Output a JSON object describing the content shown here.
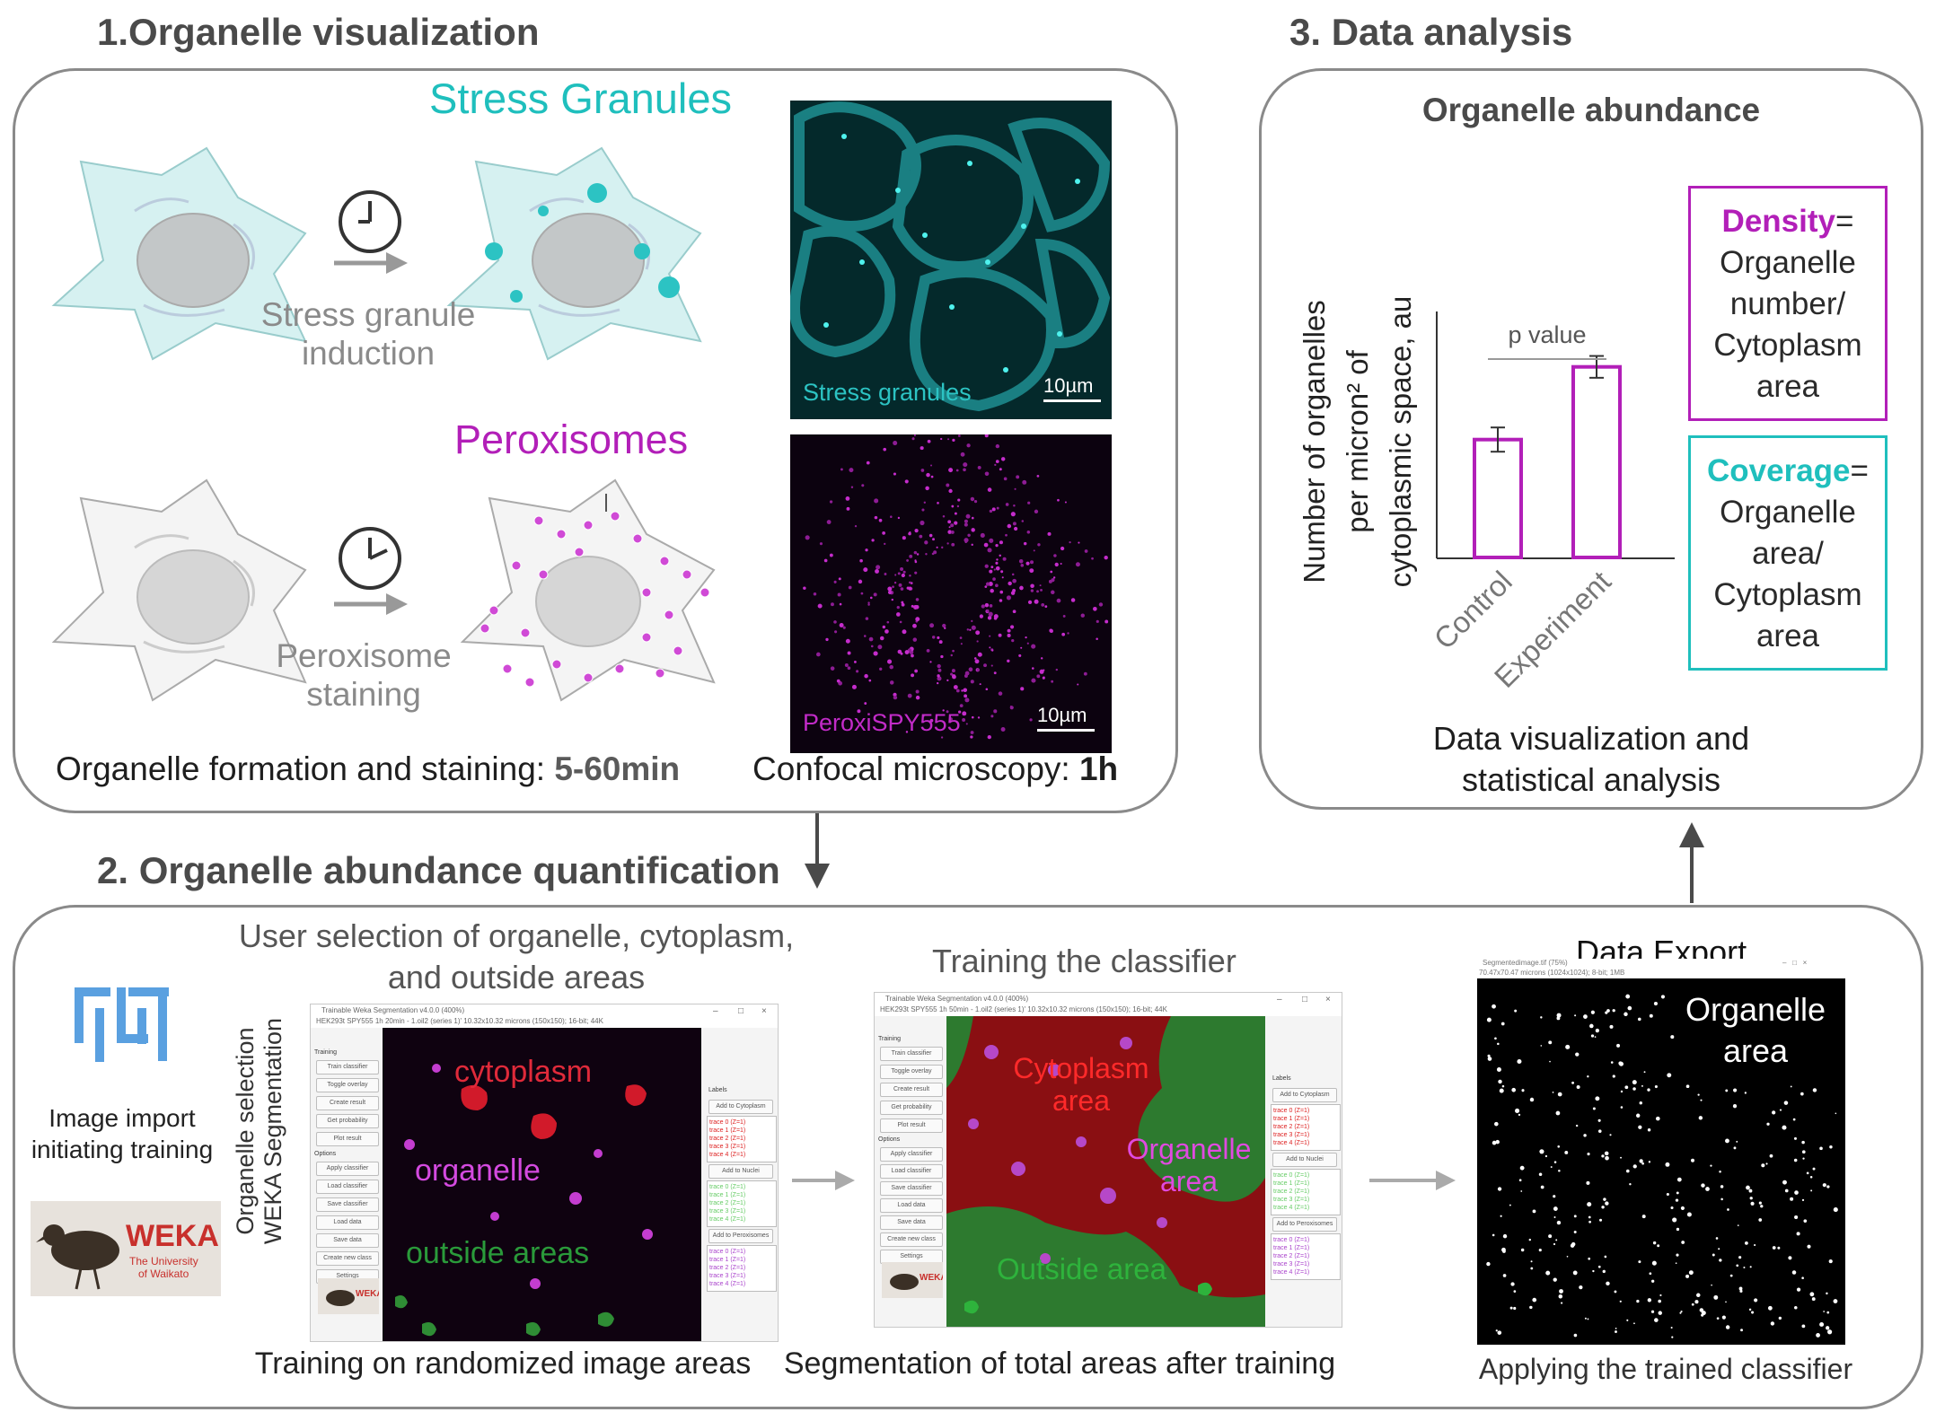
{
  "colors": {
    "teal": "#1fbfbd",
    "magenta": "#b21fb8",
    "panel_border": "#8a8a8a",
    "heading": "#4a4a4a",
    "arrow": "#4a4a4a"
  },
  "section1": {
    "heading": "1.Organelle visualization",
    "stress_title": "Stress Granules",
    "stress_induction": [
      "Stress granule",
      "induction"
    ],
    "peroxisome_title": "Peroxisomes",
    "peroxisome_staining": [
      "Peroxisome",
      "staining"
    ],
    "formation_caption": "Organelle formation and staining: ",
    "formation_time": "5-60min",
    "confocal_caption": "Confocal microscopy: ",
    "confocal_time": "1h",
    "micro1_label": "Stress granules",
    "micro1_scale": "10µm",
    "micro2_label": "PeroxiSPY555",
    "micro2_scale": "10µm",
    "icons": [
      "clock-icon",
      "arrow-right-icon",
      "cell-icon"
    ]
  },
  "section2": {
    "heading": "2. Organelle abundance quantification",
    "import_caption": [
      "Image import",
      "initiating training"
    ],
    "weka_logo_text": "WEKA",
    "weka_logo_sub": [
      "The University",
      "of Waikato"
    ],
    "side_label": [
      "Organelle selection",
      "WEKA Segmentation"
    ],
    "user_selection_caption": [
      "User selection of organelle, cytoplasm,",
      "and outside areas"
    ],
    "label_cytoplasm": "cytoplasm",
    "label_organelle": "organelle",
    "label_outside": "outside areas",
    "training_caption": "Training on randomized image areas",
    "classifier_title": "Training the classifier",
    "seg_label_cytoplasm": [
      "Cytoplasm",
      "area"
    ],
    "seg_label_organelle": [
      "Organelle",
      "area"
    ],
    "seg_label_outside": "Outside area",
    "segmentation_caption": "Segmentation of total areas after training",
    "export_title": "Data Export",
    "export_label": [
      "Organelle",
      "area"
    ],
    "applying_caption": "Applying the trained classifier",
    "weka_window": {
      "title1": "Trainable Weka Segmentation v4.0.0 (400%)",
      "subtitle1": "HEK293t SPY555 1h 20min - 1.oil2 (series 1)' 10.32x10.32 microns (150x150); 16-bit; 44K",
      "title2": "Trainable Weka Segmentation v4.0.0 (400%)",
      "subtitle2": "HEK293t SPY555 1h 50min - 1.oil2 (series 1)' 10.32x10.32 microns (150x150); 16-bit; 44K",
      "training_header": "Training",
      "training_buttons": [
        "Train classifier",
        "Toggle overlay",
        "Create result",
        "Get probability",
        "Plot result"
      ],
      "options_header": "Options",
      "options_buttons": [
        "Apply classifier",
        "Load classifier",
        "Save classifier",
        "Load data",
        "Save data",
        "Create new class",
        "Settings"
      ],
      "labels_header": "Labels",
      "add_cytoplasm": "Add to Cytoplasm",
      "add_nuclei": "Add to Nuclei",
      "add_peroxisomes": "Add to Peroxisomes",
      "traces": [
        "trace 0 (Z=1)",
        "trace 1 (Z=1)",
        "trace 2 (Z=1)",
        "trace 3 (Z=1)",
        "trace 4 (Z=1)"
      ],
      "window_controls": [
        "–",
        "□",
        "×"
      ],
      "export_title": "Segmentedimage.tif (75%)",
      "export_subtitle": "70.47x70.47 microns (1024x1024); 8-bit; 1MB"
    }
  },
  "section3": {
    "heading": "3. Data analysis",
    "chart_title": "Organelle abundance",
    "density_word": "Density",
    "density_def": [
      "Organelle",
      "number/",
      "Cytoplasm",
      "area"
    ],
    "coverage_word": "Coverage",
    "coverage_def": [
      "Organelle",
      "area/",
      "Cytoplasm",
      "area"
    ],
    "equals": "=",
    "caption": [
      "Data visualization and",
      "statistical analysis"
    ]
  },
  "chart_data": {
    "type": "bar",
    "title": "Organelle abundance",
    "categories": [
      "Control",
      "Experiment"
    ],
    "values": [
      0.49,
      0.79
    ],
    "errors": [
      0.05,
      0.045
    ],
    "ylabel": "Number of organelles per micron² of cytoplasmic space, au",
    "xlabel": "",
    "ylim": [
      0,
      1
    ],
    "annotation": "p value",
    "bar_color": "#b21fb8",
    "grid": false
  }
}
